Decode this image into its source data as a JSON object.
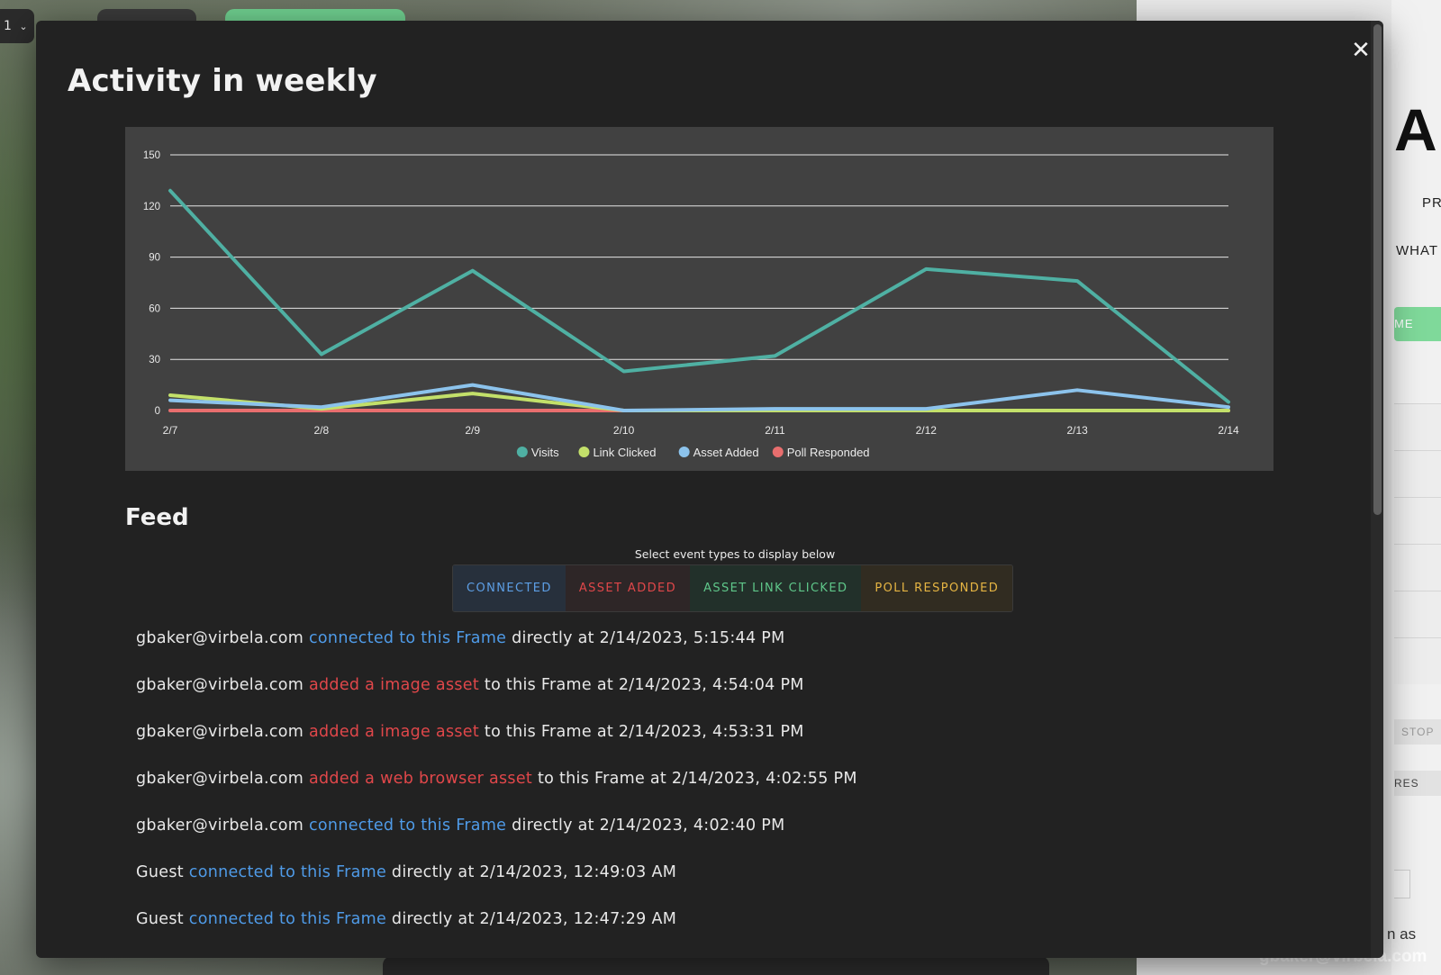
{
  "background": {
    "top_left_label": "1",
    "right_panel": {
      "big_text": "AM",
      "line1": "PR",
      "line2": "WHAT",
      "green_button": "ME",
      "button_stop": "STOP",
      "button_res": "RES",
      "signed_in_suffix": "n as",
      "user_email": "gbaker@virbela.com"
    }
  },
  "modal": {
    "title": "Activity in weekly",
    "close_icon": "close-icon"
  },
  "chart_data": {
    "type": "line",
    "x": [
      "2/7",
      "2/8",
      "2/9",
      "2/10",
      "2/11",
      "2/12",
      "2/13",
      "2/14"
    ],
    "yticks": [
      0,
      30,
      60,
      90,
      120,
      150
    ],
    "ylim": [
      0,
      150
    ],
    "grid": true,
    "legend_position": "bottom",
    "series": [
      {
        "name": "Visits",
        "color": "#4fb0a3",
        "values": [
          129,
          33,
          82,
          23,
          32,
          83,
          76,
          5
        ]
      },
      {
        "name": "Link Clicked",
        "color": "#c3e06a",
        "values": [
          9,
          1,
          10,
          0,
          0,
          0,
          0,
          0
        ]
      },
      {
        "name": "Asset Added",
        "color": "#8cc3ec",
        "values": [
          6,
          2,
          15,
          0,
          1,
          1,
          12,
          2
        ]
      },
      {
        "name": "Poll Responded",
        "color": "#e86e6e",
        "values": [
          0,
          0,
          0,
          0,
          0,
          0,
          0,
          0
        ]
      }
    ]
  },
  "feed": {
    "title": "Feed",
    "select_caption": "Select event types to display below",
    "filters": [
      {
        "label": "CONNECTED"
      },
      {
        "label": "ASSET ADDED"
      },
      {
        "label": "ASSET LINK CLICKED"
      },
      {
        "label": "POLL RESPONDED"
      }
    ],
    "items": [
      {
        "user": "gbaker@virbela.com",
        "action": "connected to this Frame",
        "action_type": "connected",
        "rest": "directly at 2/14/2023, 5:15:44 PM"
      },
      {
        "user": "gbaker@virbela.com",
        "action": "added a image asset",
        "action_type": "asset",
        "rest": "to this Frame at 2/14/2023, 4:54:04 PM"
      },
      {
        "user": "gbaker@virbela.com",
        "action": "added a image asset",
        "action_type": "asset",
        "rest": "to this Frame at 2/14/2023, 4:53:31 PM"
      },
      {
        "user": "gbaker@virbela.com",
        "action": "added a web browser asset",
        "action_type": "asset",
        "rest": "to this Frame at 2/14/2023, 4:02:55 PM"
      },
      {
        "user": "gbaker@virbela.com",
        "action": "connected to this Frame",
        "action_type": "connected",
        "rest": "directly at 2/14/2023, 4:02:40 PM"
      },
      {
        "user": "Guest",
        "action": "connected to this Frame",
        "action_type": "connected",
        "rest": "directly at 2/14/2023, 12:49:03 AM"
      },
      {
        "user": "Guest",
        "action": "connected to this Frame",
        "action_type": "connected",
        "rest": "directly at 2/14/2023, 12:47:29 AM"
      }
    ]
  }
}
